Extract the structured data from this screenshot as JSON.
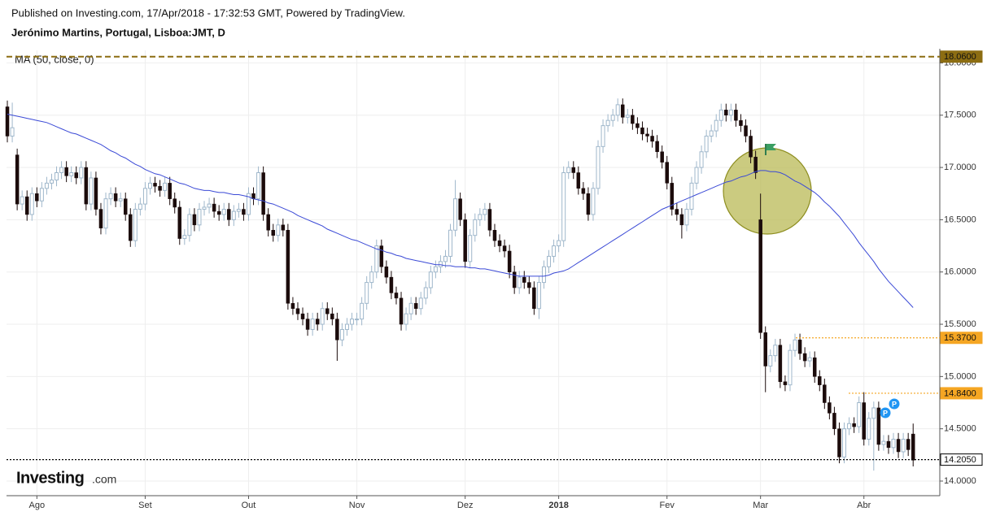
{
  "header": {
    "published": "Published on Investing.com, 17/Apr/2018 - 17:32:53 GMT, Powered by TradingView.",
    "symbol": "Jerónimo Martins, Portugal, Lisboa:JMT, D"
  },
  "logo": {
    "brand": "Investing",
    "suffix": ".com"
  },
  "chart_data": {
    "type": "candlestick",
    "categories": [
      null,
      null,
      null,
      null,
      null,
      null,
      "Ago",
      null,
      null,
      null,
      null,
      null,
      null,
      null,
      null,
      null,
      null,
      null,
      null,
      null,
      null,
      null,
      null,
      null,
      null,
      null,
      null,
      null,
      "Set",
      null,
      null,
      null,
      null,
      null,
      null,
      null,
      null,
      null,
      null,
      null,
      null,
      null,
      null,
      null,
      null,
      null,
      null,
      null,
      null,
      "Out",
      null,
      null,
      null,
      null,
      null,
      null,
      null,
      null,
      null,
      null,
      null,
      null,
      null,
      null,
      null,
      null,
      null,
      null,
      null,
      null,
      null,
      "Nov",
      null,
      null,
      null,
      null,
      null,
      null,
      null,
      null,
      null,
      null,
      null,
      null,
      null,
      null,
      null,
      null,
      null,
      null,
      null,
      null,
      null,
      "Dez",
      null,
      null,
      null,
      null,
      null,
      null,
      null,
      null,
      null,
      null,
      null,
      null,
      null,
      null,
      null,
      null,
      null,
      null,
      "2018",
      null,
      null,
      null,
      null,
      null,
      null,
      null,
      null,
      null,
      null,
      null,
      null,
      null,
      null,
      null,
      null,
      null,
      null,
      null,
      null,
      null,
      "Fev",
      null,
      null,
      null,
      null,
      null,
      null,
      null,
      null,
      null,
      null,
      null,
      null,
      null,
      null,
      null,
      null,
      null,
      null,
      "Mar",
      null,
      null,
      null,
      null,
      null,
      null,
      null,
      null,
      null,
      null,
      null,
      null,
      null,
      null,
      null,
      null,
      null,
      null,
      null,
      null,
      "Abr",
      null,
      null,
      null,
      null,
      null,
      null,
      null,
      null,
      null,
      null
    ],
    "open": [
      17.58,
      17.3,
      17.12,
      16.65,
      16.72,
      16.55,
      16.75,
      16.68,
      16.8,
      16.85,
      16.88,
      16.95,
      17.0,
      16.92,
      16.95,
      16.9,
      17.0,
      16.65,
      16.9,
      16.6,
      16.42,
      16.7,
      16.75,
      16.68,
      16.7,
      16.55,
      16.3,
      16.6,
      16.65,
      16.8,
      16.85,
      16.82,
      16.78,
      16.85,
      16.7,
      16.62,
      16.32,
      16.35,
      16.55,
      16.45,
      16.6,
      16.62,
      16.65,
      16.58,
      16.55,
      16.6,
      16.5,
      16.58,
      16.6,
      16.55,
      16.75,
      16.7,
      16.95,
      16.55,
      16.4,
      16.35,
      16.45,
      16.4,
      15.7,
      15.65,
      15.6,
      15.55,
      15.45,
      15.55,
      15.5,
      15.65,
      15.6,
      15.55,
      15.35,
      15.45,
      15.5,
      15.55,
      15.55,
      15.7,
      15.9,
      16.0,
      16.25,
      16.05,
      15.95,
      15.8,
      15.75,
      15.5,
      15.6,
      15.7,
      15.65,
      15.75,
      15.85,
      16.0,
      16.05,
      16.1,
      16.15,
      16.4,
      16.7,
      16.5,
      16.1,
      16.35,
      16.5,
      16.55,
      16.6,
      16.4,
      16.3,
      16.25,
      16.2,
      16.0,
      15.85,
      15.95,
      15.9,
      15.85,
      15.65,
      15.9,
      16.05,
      16.15,
      16.25,
      16.3,
      16.95,
      17.0,
      16.95,
      16.8,
      16.75,
      16.55,
      16.8,
      17.2,
      17.4,
      17.45,
      17.5,
      17.6,
      17.48,
      17.5,
      17.42,
      17.38,
      17.32,
      17.3,
      17.25,
      17.15,
      17.05,
      16.85,
      16.6,
      16.55,
      16.45,
      16.6,
      16.85,
      17.0,
      17.15,
      17.3,
      17.35,
      17.45,
      17.55,
      17.5,
      17.55,
      17.45,
      17.4,
      17.3,
      17.1,
      16.5,
      15.42,
      15.1,
      15.2,
      15.3,
      14.95,
      14.92,
      15.25,
      15.35,
      15.22,
      15.15,
      15.18,
      15.0,
      14.92,
      14.75,
      14.65,
      14.5,
      14.23,
      14.5,
      14.55,
      14.52,
      14.75,
      14.4,
      14.6,
      14.7,
      14.35,
      14.38,
      14.32,
      14.4,
      14.28,
      14.4,
      14.45
    ],
    "high": [
      17.64,
      17.62,
      17.18,
      16.78,
      16.78,
      16.81,
      16.81,
      16.86,
      16.91,
      16.94,
      17.01,
      17.06,
      17.06,
      17.01,
      17.01,
      17.06,
      17.06,
      16.96,
      16.96,
      16.66,
      16.76,
      16.81,
      16.81,
      16.76,
      16.76,
      16.61,
      16.66,
      16.71,
      16.86,
      16.91,
      16.91,
      16.88,
      16.91,
      16.91,
      16.76,
      16.68,
      16.41,
      16.61,
      16.61,
      16.66,
      16.68,
      16.71,
      16.71,
      16.64,
      16.66,
      16.66,
      16.64,
      16.66,
      16.66,
      16.81,
      16.81,
      17.01,
      17.01,
      16.61,
      16.46,
      16.51,
      16.51,
      16.46,
      15.76,
      15.71,
      15.66,
      15.61,
      15.61,
      15.61,
      15.71,
      15.71,
      15.66,
      15.61,
      15.51,
      15.56,
      15.61,
      15.61,
      15.76,
      15.96,
      16.06,
      16.31,
      16.31,
      16.11,
      16.01,
      15.86,
      15.81,
      15.66,
      15.76,
      15.76,
      15.81,
      15.91,
      16.06,
      16.11,
      16.16,
      16.21,
      16.46,
      16.88,
      16.76,
      16.56,
      16.41,
      16.56,
      16.61,
      16.66,
      16.66,
      16.46,
      16.36,
      16.31,
      16.26,
      16.06,
      16.01,
      16.01,
      15.96,
      15.91,
      15.96,
      16.11,
      16.21,
      16.31,
      16.36,
      17.01,
      17.06,
      17.06,
      17.01,
      16.86,
      16.81,
      16.86,
      17.26,
      17.46,
      17.51,
      17.56,
      17.66,
      17.66,
      17.56,
      17.56,
      17.48,
      17.44,
      17.38,
      17.36,
      17.31,
      17.21,
      17.11,
      16.91,
      16.66,
      16.61,
      16.66,
      16.91,
      17.06,
      17.21,
      17.36,
      17.41,
      17.51,
      17.61,
      17.61,
      17.61,
      17.61,
      17.51,
      17.46,
      17.36,
      17.16,
      16.75,
      15.48,
      15.26,
      15.36,
      15.36,
      15.01,
      15.31,
      15.41,
      15.41,
      15.28,
      15.24,
      15.24,
      15.06,
      14.98,
      14.81,
      14.71,
      14.56,
      14.56,
      14.61,
      14.61,
      14.81,
      14.85,
      14.66,
      14.76,
      14.76,
      14.44,
      14.44,
      14.46,
      14.46,
      14.46,
      14.46,
      14.55
    ],
    "low": [
      17.24,
      17.24,
      16.59,
      16.59,
      16.49,
      16.49,
      16.62,
      16.62,
      16.74,
      16.79,
      16.82,
      16.89,
      16.86,
      16.86,
      16.84,
      16.84,
      16.59,
      16.59,
      16.54,
      16.36,
      16.36,
      16.64,
      16.62,
      16.62,
      16.49,
      16.24,
      16.24,
      16.54,
      16.59,
      16.74,
      16.76,
      16.72,
      16.72,
      16.64,
      16.56,
      16.26,
      16.26,
      16.29,
      16.39,
      16.39,
      16.54,
      16.56,
      16.52,
      16.49,
      16.49,
      16.44,
      16.44,
      16.52,
      16.49,
      16.49,
      16.64,
      16.64,
      16.49,
      16.34,
      16.29,
      16.29,
      16.34,
      15.64,
      15.59,
      15.54,
      15.49,
      15.39,
      15.39,
      15.44,
      15.44,
      15.54,
      15.49,
      15.15,
      15.29,
      15.39,
      15.44,
      15.49,
      15.49,
      15.64,
      15.84,
      15.94,
      15.99,
      15.89,
      15.74,
      15.69,
      15.44,
      15.44,
      15.54,
      15.59,
      15.59,
      15.69,
      15.79,
      15.94,
      15.99,
      16.04,
      16.09,
      16.34,
      16.44,
      16.04,
      16.04,
      16.29,
      16.44,
      16.49,
      16.34,
      16.24,
      16.19,
      16.14,
      15.94,
      15.79,
      15.79,
      15.84,
      15.79,
      15.59,
      15.55,
      15.84,
      15.99,
      16.09,
      16.19,
      16.24,
      16.89,
      16.89,
      16.74,
      16.69,
      16.49,
      16.49,
      16.74,
      17.14,
      17.34,
      17.39,
      17.44,
      17.42,
      17.42,
      17.36,
      17.32,
      17.26,
      17.24,
      17.19,
      17.09,
      16.99,
      16.79,
      16.54,
      16.49,
      16.32,
      16.39,
      16.54,
      16.79,
      16.94,
      17.09,
      17.24,
      17.29,
      17.39,
      17.44,
      17.44,
      17.39,
      17.34,
      17.24,
      17.04,
      16.89,
      15.36,
      14.85,
      15.04,
      15.14,
      14.89,
      14.86,
      14.86,
      15.19,
      15.16,
      15.09,
      15.09,
      14.94,
      14.86,
      14.69,
      14.59,
      14.44,
      14.17,
      14.17,
      14.44,
      14.46,
      14.46,
      14.34,
      14.34,
      14.1,
      14.29,
      14.29,
      14.26,
      14.26,
      14.22,
      14.22,
      14.24,
      14.14
    ],
    "close": [
      17.3,
      17.38,
      16.65,
      16.72,
      16.55,
      16.75,
      16.68,
      16.8,
      16.85,
      16.88,
      16.95,
      17.0,
      16.92,
      16.95,
      16.9,
      17.0,
      16.65,
      16.9,
      16.6,
      16.42,
      16.7,
      16.75,
      16.68,
      16.7,
      16.55,
      16.3,
      16.6,
      16.65,
      16.8,
      16.85,
      16.82,
      16.78,
      16.85,
      16.7,
      16.62,
      16.32,
      16.35,
      16.55,
      16.45,
      16.6,
      16.62,
      16.65,
      16.58,
      16.55,
      16.6,
      16.5,
      16.58,
      16.6,
      16.55,
      16.75,
      16.7,
      16.95,
      16.55,
      16.4,
      16.35,
      16.45,
      16.4,
      15.7,
      15.65,
      15.6,
      15.55,
      15.45,
      15.55,
      15.5,
      15.65,
      15.6,
      15.55,
      15.35,
      15.45,
      15.5,
      15.55,
      15.55,
      15.7,
      15.9,
      16.0,
      16.25,
      16.05,
      15.95,
      15.8,
      15.75,
      15.5,
      15.6,
      15.7,
      15.65,
      15.75,
      15.85,
      16.0,
      16.05,
      16.1,
      16.15,
      16.4,
      16.7,
      16.5,
      16.1,
      16.35,
      16.5,
      16.55,
      16.6,
      16.4,
      16.3,
      16.25,
      16.2,
      16.0,
      15.85,
      15.95,
      15.9,
      15.85,
      15.65,
      15.9,
      16.05,
      16.15,
      16.25,
      16.3,
      16.95,
      17.0,
      16.95,
      16.8,
      16.75,
      16.55,
      16.8,
      17.2,
      17.4,
      17.45,
      17.5,
      17.6,
      17.48,
      17.5,
      17.42,
      17.38,
      17.32,
      17.3,
      17.25,
      17.15,
      17.05,
      16.85,
      16.6,
      16.55,
      16.45,
      16.6,
      16.85,
      17.0,
      17.15,
      17.3,
      17.35,
      17.45,
      17.55,
      17.5,
      17.55,
      17.45,
      17.4,
      17.3,
      17.1,
      16.95,
      15.42,
      15.1,
      15.2,
      15.3,
      14.95,
      14.92,
      15.25,
      15.35,
      15.22,
      15.15,
      15.18,
      15.0,
      14.92,
      14.75,
      14.65,
      14.5,
      14.23,
      14.5,
      14.55,
      14.52,
      14.75,
      14.4,
      14.6,
      14.7,
      14.35,
      14.38,
      14.32,
      14.4,
      14.28,
      14.4,
      14.3,
      14.2
    ],
    "up_color": "#9fb7cb",
    "down_color": "#1b0b0b",
    "ma": {
      "name": "MA (50, close, 0)",
      "color": "#3b4ad6",
      "values": [
        17.51,
        17.5,
        17.49,
        17.48,
        17.47,
        17.46,
        17.45,
        17.44,
        17.43,
        17.41,
        17.39,
        17.37,
        17.35,
        17.33,
        17.32,
        17.3,
        17.28,
        17.26,
        17.24,
        17.22,
        17.19,
        17.16,
        17.14,
        17.11,
        17.09,
        17.06,
        17.03,
        17.01,
        16.98,
        16.96,
        16.94,
        16.93,
        16.91,
        16.89,
        16.87,
        16.85,
        16.84,
        16.82,
        16.8,
        16.79,
        16.78,
        16.78,
        16.77,
        16.76,
        16.76,
        16.75,
        16.74,
        16.74,
        16.73,
        16.72,
        16.7,
        16.69,
        16.68,
        16.66,
        16.65,
        16.63,
        16.61,
        16.59,
        16.57,
        16.54,
        16.52,
        16.5,
        16.48,
        16.46,
        16.44,
        16.41,
        16.39,
        16.37,
        16.35,
        16.33,
        16.31,
        16.3,
        16.28,
        16.26,
        16.24,
        16.22,
        16.21,
        16.19,
        16.18,
        16.16,
        16.15,
        16.13,
        16.12,
        16.11,
        16.1,
        16.09,
        16.08,
        16.07,
        16.07,
        16.06,
        16.06,
        16.05,
        16.05,
        16.05,
        16.04,
        16.04,
        16.03,
        16.03,
        16.02,
        16.01,
        16.0,
        15.99,
        15.98,
        15.97,
        15.96,
        15.96,
        15.96,
        15.96,
        15.96,
        15.96,
        15.97,
        15.99,
        16.0,
        16.01,
        16.03,
        16.06,
        16.09,
        16.12,
        16.15,
        16.18,
        16.21,
        16.24,
        16.27,
        16.3,
        16.33,
        16.36,
        16.39,
        16.42,
        16.45,
        16.48,
        16.51,
        16.54,
        16.57,
        16.6,
        16.62,
        16.64,
        16.66,
        16.68,
        16.7,
        16.72,
        16.74,
        16.76,
        16.78,
        16.8,
        16.82,
        16.84,
        16.86,
        16.87,
        16.89,
        16.91,
        16.92,
        16.94,
        16.96,
        16.97,
        16.97,
        16.96,
        16.96,
        16.95,
        16.93,
        16.9,
        16.87,
        16.85,
        16.82,
        16.79,
        16.76,
        16.72,
        16.67,
        16.63,
        16.58,
        16.53,
        16.47,
        16.41,
        16.35,
        16.28,
        16.22,
        16.16,
        16.1,
        16.03,
        15.97,
        15.91,
        15.86,
        15.81,
        15.76,
        15.71,
        15.66
      ]
    },
    "price_lines": [
      {
        "value": 18.06,
        "label": "18.0600",
        "color": "#8c6d12",
        "style": "dashed"
      },
      {
        "value": 15.37,
        "label": "15.3700",
        "color": "#f5a623",
        "style": "dotted"
      },
      {
        "value": 14.84,
        "label": "14.8400",
        "color": "#f5a623",
        "style": "dotted"
      },
      {
        "value": 14.205,
        "label": "14.2050",
        "color": "#000000",
        "style": "dotted"
      }
    ],
    "ylim": [
      13.86,
      18.12
    ],
    "yticks": [
      {
        "value": 14,
        "label": "14.0000"
      },
      {
        "value": 14.5,
        "label": "14.5000"
      },
      {
        "value": 15,
        "label": "15.0000"
      },
      {
        "value": 15.5,
        "label": "15.5000"
      },
      {
        "value": 16,
        "label": "16.0000"
      },
      {
        "value": 16.5,
        "label": "16.5000"
      },
      {
        "value": 17,
        "label": "17.0000"
      },
      {
        "value": 17.5,
        "label": "17.5000"
      },
      {
        "value": 18,
        "label": "18.0000"
      }
    ],
    "grid": true
  }
}
